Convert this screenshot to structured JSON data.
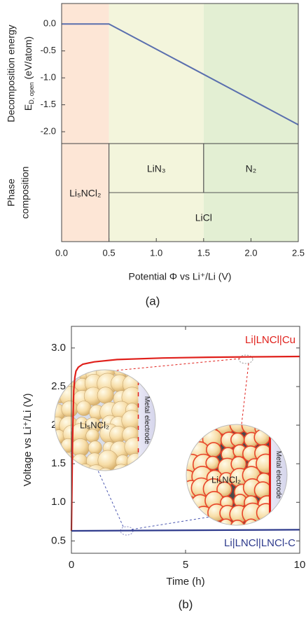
{
  "chart_data": [
    {
      "type": "line",
      "ylabel": {
        "line1": "Decomposition energy",
        "symbol": "E",
        "subscript": "D, open",
        "unit": " (eV/atom)"
      },
      "xlim": [
        0,
        2.5
      ],
      "ylim": [
        -2.22,
        0.38
      ],
      "yticks": [
        {
          "value": 0,
          "label": "0.0"
        },
        -0.5,
        {
          "value": -1,
          "label": "-1.0"
        },
        -1.5,
        {
          "value": -2,
          "label": "-2.0"
        }
      ],
      "regions": [
        {
          "from": 0,
          "to": 0.5,
          "color": "#fde6d6"
        },
        {
          "from": 0.5,
          "to": 1.5,
          "color": "#f3f5dc"
        },
        {
          "from": 1.5,
          "to": 2.5,
          "color": "#e3efd3"
        }
      ],
      "series": [
        {
          "color": "#5a6fae",
          "x": [
            0,
            0.5,
            2.5
          ],
          "values": [
            0,
            0,
            -1.87
          ]
        }
      ]
    },
    {
      "type": "phase",
      "ylabel": [
        "Phase",
        "composition"
      ],
      "xlabel": "Potential Φ vs Li⁺/Li (V)",
      "xlim": [
        0,
        2.5
      ],
      "xticks": [
        {
          "value": 0,
          "label": "0.0"
        },
        0.5,
        {
          "value": 1,
          "label": "1.0"
        },
        1.5,
        {
          "value": 2,
          "label": "2.0"
        },
        2.5
      ],
      "phases": [
        {
          "label": "Li₅NCl₂",
          "from": 0,
          "to": 0.5,
          "level": "full"
        },
        {
          "label": "LiN₃",
          "from": 0.5,
          "to": 1.5,
          "level": "top"
        },
        {
          "label": "N₂",
          "from": 1.5,
          "to": 2.5,
          "level": "top"
        },
        {
          "label": "LiCl",
          "from": 0.5,
          "to": 2.5,
          "level": "bottom"
        }
      ],
      "panel_label": "(a)"
    },
    {
      "type": "line",
      "xlabel": "Time (h)",
      "ylabel": "Voltage vs Li⁺/Li (V)",
      "xlim": [
        0,
        10
      ],
      "xticks": [
        0,
        5,
        10
      ],
      "ylim": [
        0.34,
        3.28
      ],
      "yticks": [
        0.5,
        {
          "value": 1,
          "label": "1.0"
        },
        1.5,
        {
          "value": 2,
          "label": "2.0"
        },
        2.5,
        {
          "value": 3,
          "label": "3.0"
        }
      ],
      "series": [
        {
          "name": "Li|LNCl|Cu",
          "color": "#e0201b",
          "x": [
            0,
            0.05,
            0.1,
            0.15,
            0.2,
            0.3,
            0.5,
            1,
            2,
            4,
            6,
            8,
            10
          ],
          "values": [
            0.63,
            1.8,
            2.45,
            2.62,
            2.7,
            2.75,
            2.79,
            2.82,
            2.85,
            2.87,
            2.88,
            2.885,
            2.89
          ]
        },
        {
          "name": "Li|LNCl|LNCl-C",
          "color": "#2e3a8c",
          "x": [
            0,
            10
          ],
          "values": [
            0.63,
            0.645
          ]
        }
      ],
      "annotations": [
        {
          "text": "Li₅NCl₂"
        },
        {
          "text": "Metal electrode"
        },
        {
          "text": "Li₅NCl₂"
        },
        {
          "text": "Metal electrode"
        }
      ],
      "panel_label": "(b)"
    }
  ]
}
